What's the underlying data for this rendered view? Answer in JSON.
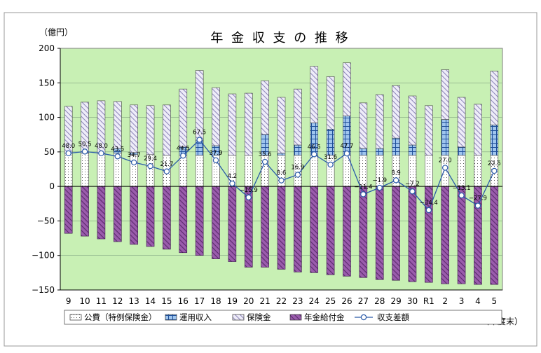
{
  "chart_data": {
    "type": "bar",
    "title": "年 金 収 支 の 推 移",
    "y_unit": "（億円）",
    "x_unit": "（年度末）",
    "ylim": [
      -150,
      200
    ],
    "yticks": [
      200,
      150,
      100,
      50,
      0,
      -50,
      -100,
      -150
    ],
    "grid": true,
    "legend_position": "bottom",
    "categories": [
      "9",
      "10",
      "11",
      "12",
      "13",
      "14",
      "15",
      "16",
      "17",
      "18",
      "19",
      "20",
      "21",
      "22",
      "23",
      "24",
      "25",
      "26",
      "27",
      "28",
      "29",
      "30",
      "R1",
      "2",
      "3",
      "4",
      "5"
    ],
    "series": [
      {
        "name": "公費（特例保険金）",
        "kind": "stacked-bar",
        "values": [
          48,
          48,
          48,
          48,
          46,
          46,
          45,
          45,
          45,
          45,
          45,
          45,
          45,
          45,
          45,
          45,
          45,
          45,
          45,
          45,
          45,
          45,
          45,
          45,
          45,
          45,
          45
        ]
      },
      {
        "name": "運用収入",
        "kind": "stacked-bar",
        "values": [
          0,
          0,
          0,
          7,
          3,
          0,
          0,
          12,
          22,
          14,
          0,
          0,
          30,
          3,
          15,
          47,
          38,
          57,
          10,
          10,
          25,
          15,
          0,
          52,
          12,
          0,
          44
        ]
      },
      {
        "name": "保険金",
        "kind": "stacked-bar",
        "values": [
          68,
          74,
          76,
          68,
          69,
          71,
          73,
          84,
          101,
          84,
          89,
          90,
          78,
          81,
          81,
          82,
          76,
          77,
          66,
          78,
          76,
          71,
          72,
          72,
          72,
          74,
          78
        ]
      },
      {
        "name": "年金給付金",
        "kind": "negative-bar",
        "values": [
          -68,
          -72,
          -76,
          -80,
          -84,
          -87,
          -91,
          -96,
          -100,
          -105,
          -109,
          -117,
          -117,
          -120,
          -124,
          -125,
          -128,
          -130,
          -132,
          -135,
          -136,
          -138,
          -139,
          -141,
          -141,
          -142,
          -142
        ]
      },
      {
        "name": "収支差額",
        "kind": "line",
        "values": [
          48.0,
          50.5,
          48.0,
          43.5,
          34.7,
          29.4,
          21.7,
          44.5,
          67.5,
          37.9,
          4.2,
          -15.9,
          35.6,
          8.6,
          16.9,
          46.5,
          31.6,
          47.7,
          -11.4,
          -1.9,
          8.9,
          -7.2,
          -34.4,
          27.0,
          -13.1,
          -27.9,
          22.5
        ]
      }
    ],
    "line_labels": [
      "48.0",
      "50.5",
      "48.0",
      "43.5",
      "34.7",
      "29.4",
      "21.7",
      "44.5",
      "67.5",
      "37.9",
      "4.2",
      "−15.9",
      "35.6",
      "8.6",
      "16.9",
      "46.5",
      "31.6",
      "47.7",
      "−11.4",
      "−1.9",
      "8.9",
      "−7.2",
      "−34.4",
      "27.0",
      "−13.1",
      "−27.9",
      "22.5"
    ],
    "colors": {
      "plot_bg": "#c8f0b4",
      "public": "#ffffff",
      "investment": "#9fc5ee",
      "insurance": "#e6e4f6",
      "pension": "#8a4c9c",
      "line": "#2a5aa8",
      "axis": "#000000"
    }
  }
}
